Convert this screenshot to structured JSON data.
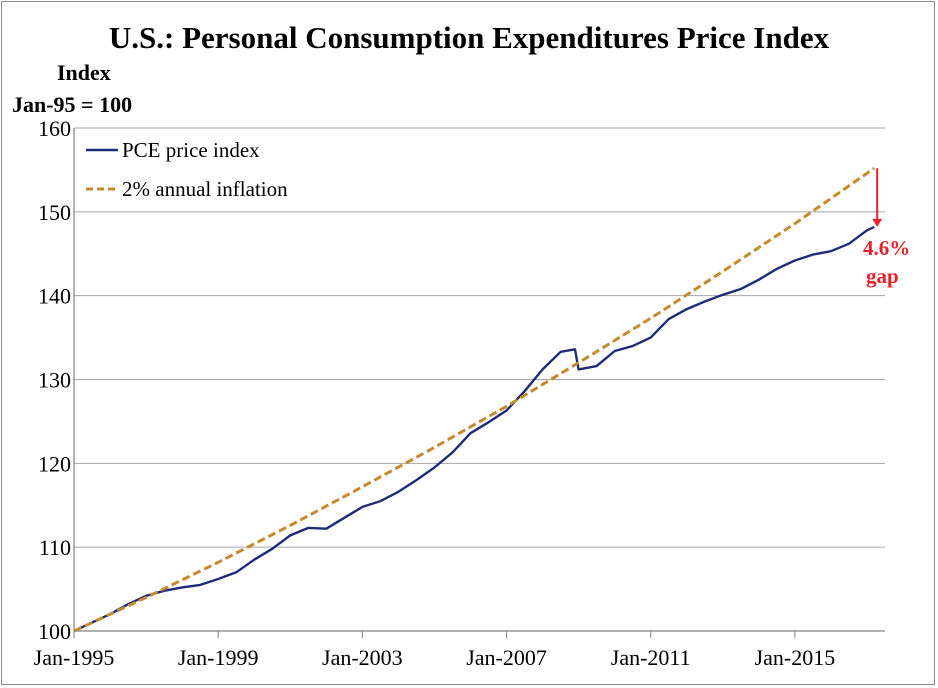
{
  "chart_data": {
    "type": "line",
    "title": "U.S.: Personal Consumption Expenditures Price Index",
    "ylabel_line1": "Index",
    "ylabel_line2": "Jan-95 = 100",
    "ylim": [
      100,
      160
    ],
    "yticks": [
      "100",
      "110",
      "120",
      "130",
      "140",
      "150",
      "160"
    ],
    "xlim": [
      1995,
      2017.5
    ],
    "xticks": [
      "Jan-1995",
      "Jan-1999",
      "Jan-2003",
      "Jan-2007",
      "Jan-2011",
      "Jan-2015"
    ],
    "grid": "horizontal",
    "legend_position": "top-left",
    "series": [
      {
        "name": "PCE price index",
        "color": "#1f2a7a",
        "style": "solid",
        "x": [
          1995.0,
          1995.5,
          1996.0,
          1996.5,
          1997.0,
          1997.5,
          1998.0,
          1998.5,
          1999.0,
          1999.5,
          2000.0,
          2000.5,
          2001.0,
          2001.5,
          2002.0,
          2002.5,
          2003.0,
          2003.5,
          2004.0,
          2004.5,
          2005.0,
          2005.5,
          2006.0,
          2006.5,
          2007.0,
          2007.5,
          2008.0,
          2008.5,
          2008.9,
          2009.0,
          2009.5,
          2010.0,
          2010.5,
          2011.0,
          2011.5,
          2012.0,
          2012.5,
          2013.0,
          2013.5,
          2014.0,
          2014.5,
          2015.0,
          2015.5,
          2016.0,
          2016.5,
          2017.0,
          2017.2
        ],
        "values": [
          100.0,
          101.0,
          102.0,
          103.2,
          104.2,
          104.8,
          105.2,
          105.5,
          106.2,
          107.0,
          108.5,
          109.8,
          111.4,
          112.3,
          112.2,
          113.5,
          114.8,
          115.5,
          116.6,
          118.0,
          119.5,
          121.3,
          123.6,
          124.9,
          126.3,
          128.6,
          131.2,
          133.3,
          133.6,
          131.2,
          131.6,
          133.4,
          134.0,
          135.0,
          137.2,
          138.4,
          139.3,
          140.1,
          140.8,
          141.9,
          143.2,
          144.2,
          144.9,
          145.3,
          146.2,
          147.8,
          148.2
        ]
      },
      {
        "name": "2% annual inflation",
        "color": "#c68a2e",
        "style": "dashed",
        "x": [
          1995.0,
          1997.0,
          1999.0,
          2001.0,
          2003.0,
          2005.0,
          2007.0,
          2009.0,
          2011.0,
          2013.0,
          2015.0,
          2017.2
        ],
        "values": [
          100.0,
          104.0,
          108.2,
          112.6,
          117.2,
          121.9,
          126.8,
          132.0,
          137.3,
          142.9,
          148.6,
          155.2
        ]
      }
    ],
    "annotation": {
      "text_line1": "4.6%",
      "text_line2": "gap",
      "from_value": 155.2,
      "to_value": 148.2,
      "x": 2017.2,
      "color": "#e8202a"
    }
  }
}
